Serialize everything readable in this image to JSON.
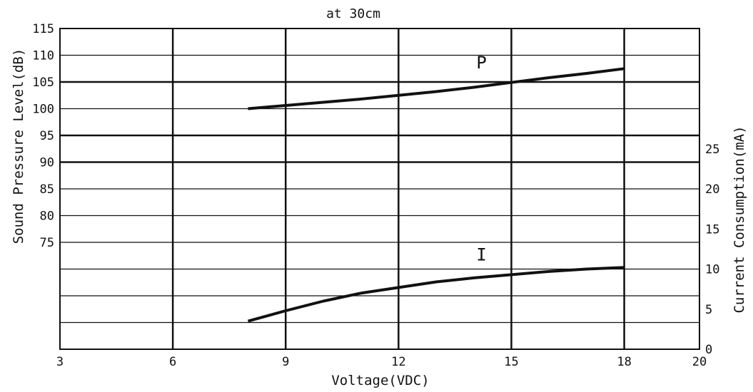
{
  "chart_data": {
    "type": "line",
    "title": "at 30cm",
    "xlabel": "Voltage(VDC)",
    "ylabel_left": "Sound Pressure Level(dB)",
    "ylabel_right": "Current Consumption(mA)",
    "x_ticks": [
      "3",
      "6",
      "9",
      "12",
      "15",
      "18",
      "20"
    ],
    "x_tick_values": [
      3,
      6,
      9,
      12,
      15,
      18,
      20
    ],
    "xlim": [
      3,
      20
    ],
    "left_ticks": [
      "115",
      "110",
      "105",
      "100",
      "95",
      "90",
      "85",
      "80",
      "75"
    ],
    "left_tick_values": [
      115,
      110,
      105,
      100,
      95,
      90,
      85,
      80,
      75
    ],
    "left_ylim": [
      55,
      115
    ],
    "right_ticks": [
      "25",
      "20",
      "15",
      "10",
      "5",
      "0"
    ],
    "right_tick_values": [
      25,
      20,
      15,
      10,
      5,
      0
    ],
    "right_ylim": [
      0,
      40
    ],
    "grid": true,
    "series": [
      {
        "name": "P",
        "axis": "left",
        "x": [
          8,
          9,
          10,
          11,
          12,
          13,
          14,
          15,
          16,
          17,
          18
        ],
        "values": [
          100,
          100.6,
          101.2,
          101.8,
          102.5,
          103.2,
          104.0,
          104.9,
          105.8,
          106.6,
          107.5
        ]
      },
      {
        "name": "I",
        "axis": "right",
        "x": [
          8,
          9,
          10,
          11,
          12,
          13,
          14,
          15,
          16,
          17,
          18
        ],
        "values": [
          3.5,
          4.8,
          6.0,
          7.0,
          7.7,
          8.4,
          8.9,
          9.3,
          9.7,
          10.0,
          10.2
        ]
      }
    ]
  }
}
